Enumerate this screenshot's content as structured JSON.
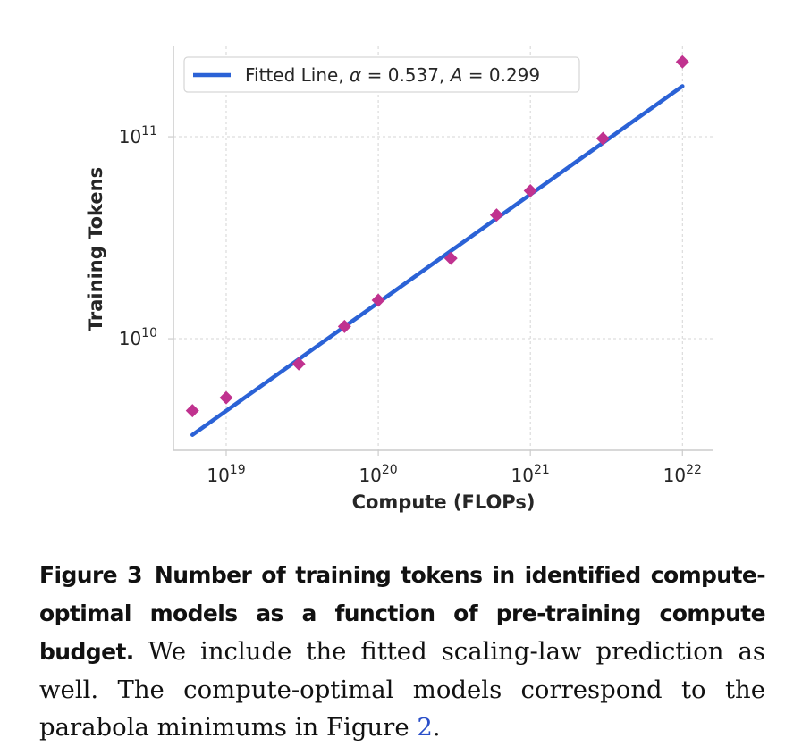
{
  "chart_data": {
    "type": "scatter",
    "xlabel": "Compute (FLOPs)",
    "ylabel": "Training Tokens",
    "xscale": "log",
    "yscale": "log",
    "xlim": [
      4.5e+18,
      1.6e+22
    ],
    "ylim": [
      2800000000.0,
      280000000000.0
    ],
    "x_ticks": [
      {
        "value": 1e+19,
        "base": "10",
        "exp": "19"
      },
      {
        "value": 1e+20,
        "base": "10",
        "exp": "20"
      },
      {
        "value": 1e+21,
        "base": "10",
        "exp": "21"
      },
      {
        "value": 1e+22,
        "base": "10",
        "exp": "22"
      }
    ],
    "y_ticks": [
      {
        "value": 10000000000.0,
        "base": "10",
        "exp": "10"
      },
      {
        "value": 100000000000.0,
        "base": "10",
        "exp": "11"
      }
    ],
    "grid": true,
    "legend_position": "top-left",
    "points": {
      "color": "#c0328f",
      "marker": "diamond",
      "x": [
        6e+18,
        1e+19,
        3e+19,
        6e+19,
        1e+20,
        3e+20,
        6e+20,
        1e+21,
        3e+21,
        1e+22
      ],
      "y": [
        4400000000.0,
        5100000000.0,
        7500000000.0,
        11500000000.0,
        15500000000.0,
        25000000000.0,
        41000000000.0,
        54000000000.0,
        98000000000.0,
        235000000000.0
      ]
    },
    "fit": {
      "name": "Fitted Line",
      "alpha_label": "α",
      "alpha": "0.537",
      "a_label": "A",
      "a": "0.299",
      "color": "#2b62d6",
      "x_range": [
        6e+18,
        1e+22
      ]
    }
  },
  "caption": {
    "label": "Figure 3",
    "title": "Number of training tokens in identified compute-optimal models as a function of pre-training compute budget.",
    "body": "We include the fitted scaling-law prediction as well. The compute-optimal models correspond to the parabola minimums in Figure",
    "ref": "2",
    "end": "."
  }
}
